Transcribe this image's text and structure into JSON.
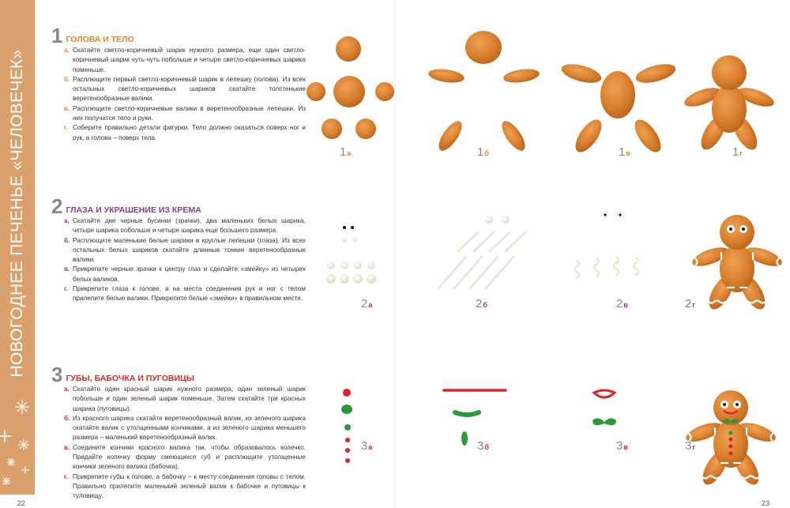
{
  "sidebar": {
    "title": "НОВОГОДНЕЕ ПЕЧЕНЬЕ «ЧЕЛОВЕЧЕК»",
    "color": "#d9a06b"
  },
  "pages": {
    "left": "22",
    "right": "23"
  },
  "sections": [
    {
      "number": "1",
      "title": "ГОЛОВА И ТЕЛО",
      "color": "#e0882a",
      "steps": [
        {
          "letter": "а.",
          "text": "Скатайте светло-коричневый шарик нужного размера, еще один светло-коричневый шарик чуть-чуть побольше и четыре светло-коричневых шарика поменьше."
        },
        {
          "letter": "б.",
          "text": "Расплющите первый светло-коричневый шарик в лепешку (голова). Из всех остальных светло-коричневых шариков скатайте толстенькие веретенообразные валики."
        },
        {
          "letter": "в.",
          "text": "Расплющите светло-коричневые валики в веретенообразные лепешки. Из них получатся тело и руки."
        },
        {
          "letter": "г.",
          "text": "Соберите правильно детали фигурки. Тело должно оказаться поверх ног и рук, а голова – поверх тела."
        }
      ],
      "labels": [
        {
          "num": "1",
          "sub": "а"
        },
        {
          "num": "1",
          "sub": "б"
        },
        {
          "num": "1",
          "sub": "в"
        },
        {
          "num": "1",
          "sub": "г"
        }
      ]
    },
    {
      "number": "2",
      "title": "ГЛАЗА И УКРАШЕНИЕ ИЗ КРЕМА",
      "color": "#8a3c8e",
      "steps": [
        {
          "letter": "а.",
          "text": "Скатайте две черные бусинки (зрачки), два маленьких белых шарика, четыре шарика побольше и четыре шарика еще большего размера."
        },
        {
          "letter": "б.",
          "text": "Расплющите маленькие белые шарики в круглые лепешки (глаза). Из всех остальных белых шариков скатайте длинные тонкие веретенообразные валики."
        },
        {
          "letter": "в.",
          "text": "Прикрепите черные зрачки к центру глаз и сделайте «змейку» из четырех белых валиков."
        },
        {
          "letter": "г.",
          "text": "Прикрепите глаза к голове, а на места соединения рук и ног с телом прилепите белые валики. Прикрепите белые «змейки» в правильном месте."
        }
      ],
      "labels": [
        {
          "num": "2",
          "sub": "а"
        },
        {
          "num": "2",
          "sub": "б"
        },
        {
          "num": "2",
          "sub": "в"
        },
        {
          "num": "2",
          "sub": "г"
        }
      ]
    },
    {
      "number": "3",
      "title": "ГУБЫ, БАБОЧКА И ПУГОВИЦЫ",
      "color": "#d42a2a",
      "steps": [
        {
          "letter": "а.",
          "text": "Скатайте один красный шарик нужного размера, один зеленый шарик побольше и один зеленый шарик поменьше. Затем скатайте три красных шарика (пуговицы)."
        },
        {
          "letter": "б.",
          "text": "Из красного шарика скатайте веретенообразный валик, из зеленого шарика скатайте валик с утолщенными кончиками, а из зеленого шарика меньшего размера – маленький веретенообразный валик."
        },
        {
          "letter": "в.",
          "text": "Соедините кончики красного валика так, чтобы образовалось колечко. Придайте колечку форму смеющихся губ и расплющите утолщенные кончики зеленого валика (бабочка)."
        },
        {
          "letter": "г.",
          "text": "Прикрепите губы к голове, а бабочку – к месту соединения головы с телом. Правильно прилепите маленький зеленый валик к бабочке и пуговицы к туловищу."
        }
      ],
      "labels": [
        {
          "num": "3",
          "sub": "а"
        },
        {
          "num": "3",
          "sub": "б"
        },
        {
          "num": "3",
          "sub": "в"
        },
        {
          "num": "3",
          "sub": "г"
        }
      ]
    }
  ],
  "colors": {
    "dough": "#d9802e",
    "red": "#d8262b",
    "green": "#2c9a3a",
    "cream": "#f4f0e6"
  }
}
